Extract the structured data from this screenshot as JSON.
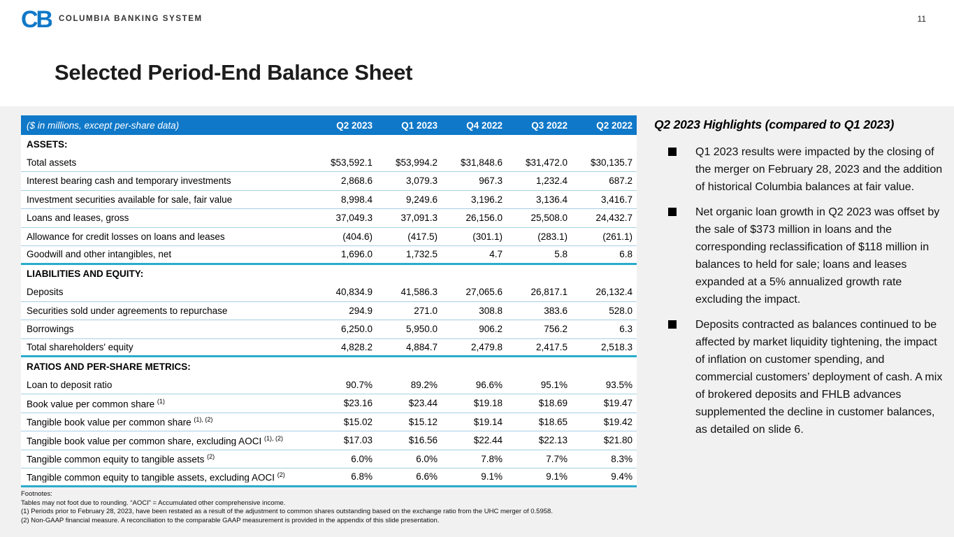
{
  "page": {
    "number": "11"
  },
  "brand": {
    "logo_text": "CB",
    "name": "COLUMBIA BANKING SYSTEM",
    "blue": "#0f78c8"
  },
  "title": "Selected Period-End Balance Sheet",
  "colors": {
    "header_bg": "#0f78c8",
    "thin_line": "#a5d0e2",
    "thick_line": "#2aaccb",
    "band_bg": "#f1f1f1"
  },
  "table": {
    "caption": "($ in millions, except per-share data)",
    "columns": [
      "Q2 2023",
      "Q1 2023",
      "Q4 2022",
      "Q3 2022",
      "Q2 2022"
    ],
    "sections": [
      {
        "header": "ASSETS:",
        "rows": [
          {
            "label": "Total assets",
            "sup": "",
            "values": [
              "$53,592.1",
              "$53,994.2",
              "$31,848.6",
              "$31,472.0",
              "$30,135.7"
            ]
          },
          {
            "label": "Interest bearing cash and temporary investments",
            "sup": "",
            "values": [
              "2,868.6",
              "3,079.3",
              "967.3",
              "1,232.4",
              "687.2"
            ]
          },
          {
            "label": "Investment securities available for sale, fair value",
            "sup": "",
            "values": [
              "8,998.4",
              "9,249.6",
              "3,196.2",
              "3,136.4",
              "3,416.7"
            ]
          },
          {
            "label": "Loans and leases, gross",
            "sup": "",
            "values": [
              "37,049.3",
              "37,091.3",
              "26,156.0",
              "25,508.0",
              "24,432.7"
            ]
          },
          {
            "label": "Allowance for credit losses on loans and leases",
            "sup": "",
            "values": [
              "(404.6)",
              "(417.5)",
              "(301.1)",
              "(283.1)",
              "(261.1)"
            ]
          },
          {
            "label": "Goodwill and other intangibles, net",
            "sup": "",
            "values": [
              "1,696.0",
              "1,732.5",
              "4.7",
              "5.8",
              "6.8"
            ]
          }
        ]
      },
      {
        "header": "LIABILITIES AND EQUITY:",
        "rows": [
          {
            "label": "Deposits",
            "sup": "",
            "values": [
              "40,834.9",
              "41,586.3",
              "27,065.6",
              "26,817.1",
              "26,132.4"
            ]
          },
          {
            "label": "Securities sold under agreements to repurchase",
            "sup": "",
            "values": [
              "294.9",
              "271.0",
              "308.8",
              "383.6",
              "528.0"
            ]
          },
          {
            "label": "Borrowings",
            "sup": "",
            "values": [
              "6,250.0",
              "5,950.0",
              "906.2",
              "756.2",
              "6.3"
            ]
          },
          {
            "label": "Total shareholders' equity",
            "sup": "",
            "values": [
              "4,828.2",
              "4,884.7",
              "2,479.8",
              "2,417.5",
              "2,518.3"
            ]
          }
        ]
      },
      {
        "header": "RATIOS AND PER-SHARE METRICS:",
        "rows": [
          {
            "label": "Loan to deposit ratio",
            "sup": "",
            "values": [
              "90.7%",
              "89.2%",
              "96.6%",
              "95.1%",
              "93.5%"
            ]
          },
          {
            "label": "Book value per common share",
            "sup": "(1)",
            "values": [
              "$23.16",
              "$23.44",
              "$19.18",
              "$18.69",
              "$19.47"
            ]
          },
          {
            "label": "Tangible book value per common share",
            "sup": "(1), (2)",
            "values": [
              "$15.02",
              "$15.12",
              "$19.14",
              "$18.65",
              "$19.42"
            ]
          },
          {
            "label": "Tangible book value per common share, excluding AOCI",
            "sup": "(1), (2)",
            "values": [
              "$17.03",
              "$16.56",
              "$22.44",
              "$22.13",
              "$21.80"
            ]
          },
          {
            "label": "Tangible common equity to tangible assets",
            "sup": "(2)",
            "values": [
              "6.0%",
              "6.0%",
              "7.8%",
              "7.7%",
              "8.3%"
            ]
          },
          {
            "label": "Tangible common equity to tangible assets, excluding AOCI",
            "sup": "(2)",
            "values": [
              "6.8%",
              "6.6%",
              "9.1%",
              "9.1%",
              "9.4%"
            ]
          }
        ]
      }
    ]
  },
  "footnotes": {
    "title": "Footnotes:",
    "lines": [
      "Tables may not foot due to rounding. “AOCI” = Accumulated other comprehensive income.",
      "(1)  Periods prior to February 28, 2023, have been restated as a result of the adjustment to common shares outstanding based on the exchange ratio from the UHC merger of 0.5958.",
      "(2) Non-GAAP financial measure.  A reconciliation to the comparable GAAP measurement is provided in the appendix of this slide presentation."
    ]
  },
  "highlights": {
    "title": "Q2 2023 Highlights (compared to Q1 2023)",
    "bullets": [
      "Q1 2023 results were impacted by the closing of the merger on February 28, 2023 and the addition of historical Columbia balances at fair value.",
      "Net organic loan growth in Q2 2023 was offset by the sale of $373 million in loans and the corresponding reclassification of $118 million in balances to held for sale; loans and leases expanded at a 5% annualized growth rate excluding the impact.",
      "Deposits contracted as balances continued to be affected by market liquidity tightening, the impact of inflation on customer spending, and commercial customers’ deployment of cash. A mix of brokered deposits and FHLB advances supplemented the decline in customer balances, as detailed on slide 6."
    ]
  }
}
